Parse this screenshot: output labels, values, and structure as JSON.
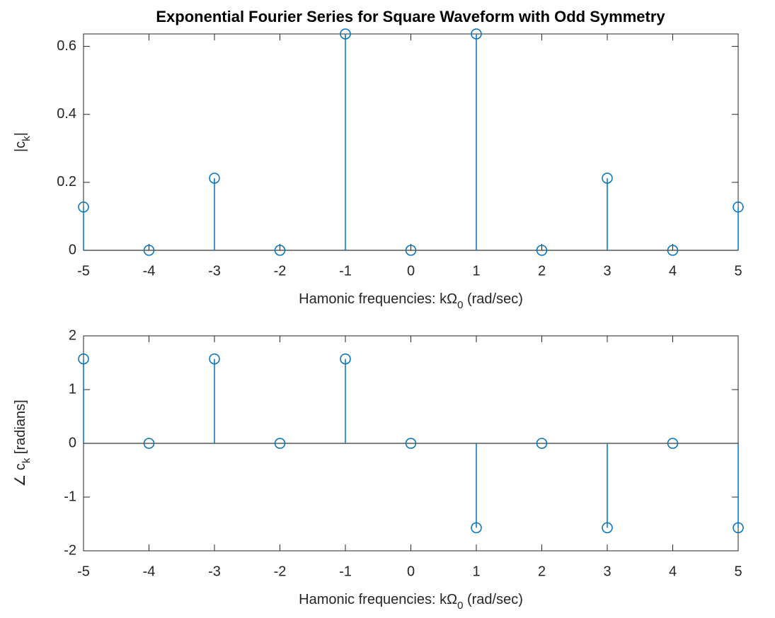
{
  "chart_data": [
    {
      "type": "stem",
      "title": "Exponential Fourier Series for Square Waveform with Odd Symmetry",
      "x": [
        -5,
        -4,
        -3,
        -2,
        -1,
        0,
        1,
        2,
        3,
        4,
        5
      ],
      "values": [
        0.1273,
        0,
        0.2122,
        0,
        0.6366,
        0,
        0.6366,
        0,
        0.2122,
        0,
        0.1273
      ],
      "color": "#0072bd",
      "xlim": [
        -5,
        5
      ],
      "xticks": [
        -5,
        -4,
        -3,
        -2,
        -1,
        0,
        1,
        2,
        3,
        4,
        5
      ],
      "ylim": [
        0,
        0.6366
      ],
      "yticks": [
        0,
        0.2,
        0.4,
        0.6
      ],
      "xlabel": [
        "Hamonic frequencies: kΩ",
        "0",
        " (rad/sec)"
      ],
      "ylabel": [
        "|c",
        "k",
        "|"
      ]
    },
    {
      "type": "stem",
      "x": [
        -5,
        -4,
        -3,
        -2,
        -1,
        0,
        1,
        2,
        3,
        4,
        5
      ],
      "values": [
        1.5708,
        0,
        1.5708,
        0,
        1.5708,
        0,
        -1.5708,
        0,
        -1.5708,
        0,
        -1.5708
      ],
      "color": "#0072bd",
      "xlim": [
        -5,
        5
      ],
      "xticks": [
        -5,
        -4,
        -3,
        -2,
        -1,
        0,
        1,
        2,
        3,
        4,
        5
      ],
      "ylim": [
        -2,
        2
      ],
      "yticks": [
        -2,
        -1,
        0,
        1,
        2
      ],
      "xlabel": [
        "Hamonic frequencies: kΩ",
        "0",
        " (rad/sec)"
      ],
      "ylabel": [
        "∠ c",
        "k",
        " [radians]"
      ]
    }
  ]
}
